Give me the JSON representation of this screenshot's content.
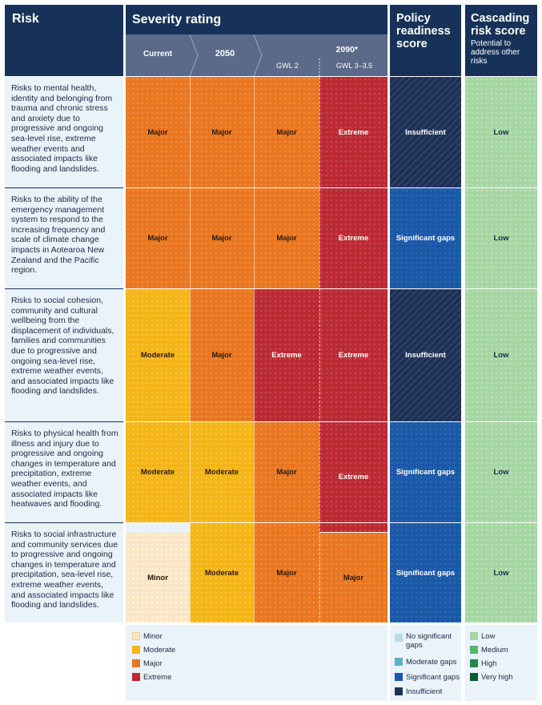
{
  "headers": {
    "risk": "Risk",
    "severity": "Severity rating",
    "policy": "Policy readiness score",
    "cascading": "Cascading risk score",
    "cascading_sub": "Potential to address other risks",
    "current": "Current",
    "y2050": "2050",
    "y2090": "2090*",
    "gwl2": "GWL 2",
    "gwl3": "GWL 3–3.5"
  },
  "rows": [
    {
      "risk": "Risks to mental health, identity and belonging from trauma and chronic stress and anxiety due to progressive and ongoing sea-level rise, extreme weather events and associated impacts like flooding and landslides.",
      "current": "Major",
      "y2050": "Major",
      "gwl2": "Major",
      "gwl3": "Extreme",
      "policy": "Insufficient",
      "cascading": "Low"
    },
    {
      "risk": "Risks to the ability of the emergency management system to respond to the increasing frequency and scale of climate change impacts in Aotearoa New Zealand and the Pacific region.",
      "current": "Major",
      "y2050": "Major",
      "gwl2": "Major",
      "gwl3": "Extreme",
      "policy": "Significant gaps",
      "cascading": "Low"
    },
    {
      "risk": "Risks to social cohesion, community and cultural wellbeing from the displacement of individuals, families and communities due to progressive and ongoing sea-level rise, extreme weather events, and associated impacts like flooding and landslides.",
      "current": "Moderate",
      "y2050": "Major",
      "gwl2": "Extreme",
      "gwl3": "Extreme",
      "policy": "Insufficient",
      "cascading": "Low"
    },
    {
      "risk": "Risks to physical health from illness and injury due to progressive and ongoing changes in temperature and precipitation, extreme weather events, and associated impacts like heatwaves and flooding.",
      "current": "Moderate",
      "y2050": "Moderate",
      "gwl2": "Major",
      "gwl3": "Extreme",
      "policy": "Significant gaps",
      "cascading": "Low"
    },
    {
      "risk": "Risks to social infrastructure and community services due to progressive and ongoing changes in temperature and precipitation, sea-level rise, extreme weather events, and associated impacts like flooding and landslides.",
      "current": "Minor",
      "y2050": "Moderate",
      "gwl2": "Major",
      "gwl3": "Major",
      "policy": "Significant gaps",
      "cascading": "Low"
    }
  ],
  "legend": {
    "severity": [
      "Minor",
      "Moderate",
      "Major",
      "Extreme"
    ],
    "policy": [
      "No significant gaps",
      "Moderate gaps",
      "Significant gaps",
      "Insufficient"
    ],
    "cascading": [
      "Low",
      "Medium",
      "High",
      "Very high"
    ]
  },
  "colors": {
    "header_navy": "#173259",
    "minor": "#fbe6c3",
    "moderate": "#f4b516",
    "major": "#ea7720",
    "extreme": "#bb2a33",
    "no_significant_gaps": "#b7dbe6",
    "moderate_gaps": "#5fb0c6",
    "significant_gaps": "#1b59a8",
    "insufficient": "#1d3155",
    "low": "#a5d6a3",
    "medium": "#58b46a",
    "high": "#1f8a4c",
    "very_high": "#0d5a32"
  }
}
